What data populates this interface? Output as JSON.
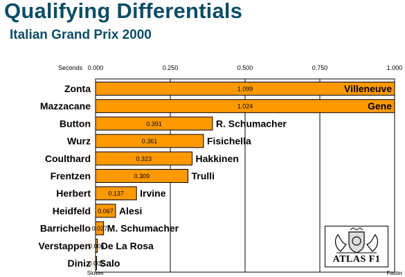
{
  "title": "Qualifying Differentials",
  "subtitle": "Italian Grand Prix 2000",
  "logo": {
    "text": "ATLAS F1",
    "icon": "atlas-f1-crest-icon"
  },
  "colors": {
    "title": "#0d4d66",
    "bar": "#ff9900",
    "bar_stroke": "#000000",
    "grid": "#000000"
  },
  "chart_data": {
    "type": "bar",
    "orientation": "horizontal",
    "xlabel": "Seconds",
    "x_ticks": [
      "0.000",
      "0.250",
      "0.500",
      "0.750",
      "1.000"
    ],
    "xlim": [
      0,
      1.0
    ],
    "x_start_label": "Slower",
    "x_end_label": "Faster",
    "grid": true,
    "rows": [
      {
        "driver": "Zonta",
        "value": 1.099,
        "label": "1.099",
        "faster": "Villeneuve"
      },
      {
        "driver": "Mazzacane",
        "value": 1.024,
        "label": "1.024",
        "faster": "Gene"
      },
      {
        "driver": "Button",
        "value": 0.391,
        "label": "0.391",
        "faster": "R. Schumacher"
      },
      {
        "driver": "Wurz",
        "value": 0.361,
        "label": "0.361",
        "faster": "Fisichella"
      },
      {
        "driver": "Coulthard",
        "value": 0.323,
        "label": "0.323",
        "faster": "Hakkinen"
      },
      {
        "driver": "Frentzen",
        "value": 0.309,
        "label": "0.309",
        "faster": "Trulli"
      },
      {
        "driver": "Herbert",
        "value": 0.137,
        "label": "0.137",
        "faster": "Irvine"
      },
      {
        "driver": "Heidfeld",
        "value": 0.067,
        "label": "0.067",
        "faster": "Alesi"
      },
      {
        "driver": "Barrichello",
        "value": 0.027,
        "label": "0.027",
        "faster": "M. Schumacher"
      },
      {
        "driver": "Verstappen",
        "value": 0.006,
        "label": "0.006",
        "faster": "De La Rosa"
      },
      {
        "driver": "Diniz",
        "value": 0.002,
        "label": "0.002",
        "faster": "Salo"
      }
    ]
  }
}
